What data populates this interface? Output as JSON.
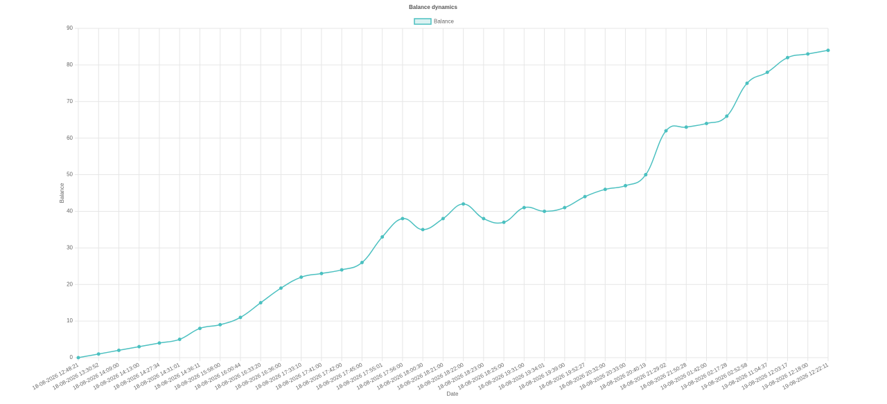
{
  "chart_data": {
    "type": "line",
    "title": "Balance dynamics",
    "x_label": "Date",
    "y_label": "Balance",
    "categories": [
      "18-08-2026 12:48:21",
      "18-08-2026 13:30:52",
      "18-08-2026 14:09:00",
      "18-08-2026 14:13:00",
      "18-08-2026 14:27:34",
      "18-08-2026 14:31:01",
      "18-08-2026 14:36:11",
      "18-08-2026 15:58:00",
      "18-08-2026 16:00:44",
      "18-08-2026 16:33:20",
      "18-08-2026 16:36:00",
      "18-08-2026 17:33:10",
      "18-08-2026 17:41:00",
      "18-08-2026 17:42:00",
      "18-08-2026 17:45:00",
      "18-08-2026 17:55:01",
      "18-08-2026 17:56:00",
      "18-08-2026 18:00:30",
      "18-08-2026 18:21:00",
      "18-08-2026 18:22:00",
      "18-08-2026 18:23:00",
      "18-08-2026 18:25:00",
      "18-08-2026 19:31:00",
      "18-08-2026 19:34:01",
      "18-08-2026 19:39:00",
      "18-08-2026 19:52:27",
      "18-08-2026 20:32:00",
      "18-08-2026 20:33:00",
      "18-08-2026 20:40:19",
      "18-08-2026 21:29:02",
      "18-08-2026 21:50:28",
      "19-08-2026 01:42:00",
      "19-08-2026 02:17:28",
      "19-08-2026 02:52:58",
      "19-08-2026 11:04:37",
      "19-08-2026 12:03:17",
      "19-08-2026 12:18:00",
      "19-08-2026 12:22:11"
    ],
    "series": [
      {
        "name": "Balance",
        "color": "#4bc0c0",
        "values": [
          0,
          1,
          2,
          3,
          4,
          5,
          8,
          9,
          11,
          15,
          19,
          22,
          23,
          24,
          26,
          33,
          38,
          35,
          38,
          42,
          38,
          37,
          41,
          40,
          41,
          44,
          46,
          47,
          50,
          62,
          63,
          64,
          66,
          75,
          78,
          82,
          83,
          84
        ]
      }
    ],
    "ylim": [
      0,
      90
    ],
    "yticks": [
      0,
      10,
      20,
      30,
      40,
      50,
      60,
      70,
      80,
      90
    ],
    "grid": true,
    "legend": "top"
  }
}
